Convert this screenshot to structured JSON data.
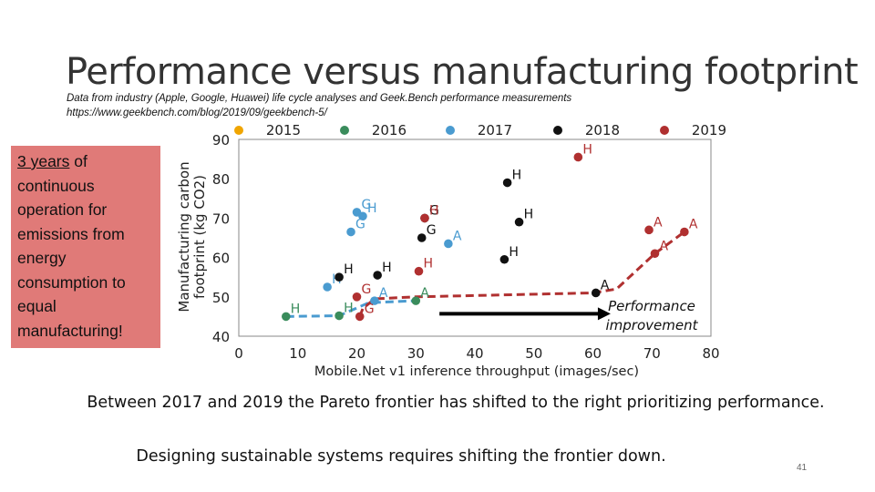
{
  "slide": {
    "title": "Performance versus manufacturing footprint",
    "subtitle_line1": "Data from industry (Apple, Google, Huawei) life cycle analyses and Geek.Bench performance measurements",
    "subtitle_line2": "https://www.geekbench.com/blog/2019/09/geekbench-5/",
    "callout_underlined": "3 years",
    "callout_rest": "of continuous operation for emissions from energy consumption to equal manufacturing!",
    "conclusion_line1": "Between 2017 and 2019 the Pareto frontier has shifted to the right prioritizing performance.",
    "conclusion_line2": "Designing sustainable systems requires shifting the frontier down.",
    "page_number": "41"
  },
  "chart_data": {
    "type": "scatter",
    "xlabel": "Mobile.Net v1 inference throughput (images/sec)",
    "ylabel": "Manufacturing carbon footprint (kg CO2)",
    "xlim": [
      0,
      80
    ],
    "ylim": [
      40,
      90
    ],
    "xticks": [
      "0",
      "10",
      "20",
      "30",
      "40",
      "50",
      "60",
      "70",
      "80"
    ],
    "yticks": [
      "40",
      "50",
      "60",
      "70",
      "80",
      "90"
    ],
    "legend_position": "top",
    "series": [
      {
        "name": "2015",
        "color": "#f0a500",
        "points": []
      },
      {
        "name": "2016",
        "color": "#3a8c5c",
        "points": [
          {
            "x": 8,
            "y": 45,
            "label": "H"
          },
          {
            "x": 17,
            "y": 45.2,
            "label": "H"
          },
          {
            "x": 30,
            "y": 49,
            "label": "A"
          }
        ]
      },
      {
        "name": "2017",
        "color": "#4a9bd0",
        "points": [
          {
            "x": 15,
            "y": 52.5,
            "label": "H"
          },
          {
            "x": 19,
            "y": 66.5,
            "label": "G"
          },
          {
            "x": 20,
            "y": 71.5,
            "label": "G"
          },
          {
            "x": 21,
            "y": 70.5,
            "label": "H"
          },
          {
            "x": 23,
            "y": 49,
            "label": "A"
          },
          {
            "x": 35.5,
            "y": 63.5,
            "label": "A"
          }
        ]
      },
      {
        "name": "2018",
        "color": "#111111",
        "points": [
          {
            "x": 17,
            "y": 55,
            "label": "H"
          },
          {
            "x": 23.5,
            "y": 55.5,
            "label": "H"
          },
          {
            "x": 31,
            "y": 65,
            "label": "G"
          },
          {
            "x": 31.5,
            "y": 70,
            "label": "G"
          },
          {
            "x": 45,
            "y": 59.5,
            "label": "H"
          },
          {
            "x": 45.5,
            "y": 79,
            "label": "H"
          },
          {
            "x": 47.5,
            "y": 69,
            "label": "H"
          },
          {
            "x": 60.5,
            "y": 51,
            "label": "A"
          }
        ]
      },
      {
        "name": "2019",
        "color": "#b03030",
        "points": [
          {
            "x": 20,
            "y": 50,
            "label": "G"
          },
          {
            "x": 20.5,
            "y": 45,
            "label": "G"
          },
          {
            "x": 30.5,
            "y": 56.5,
            "label": "H"
          },
          {
            "x": 31.5,
            "y": 70,
            "label": "H"
          },
          {
            "x": 57.5,
            "y": 85.5,
            "label": "H"
          },
          {
            "x": 69.5,
            "y": 67,
            "label": "A"
          },
          {
            "x": 70.5,
            "y": 61,
            "label": "A"
          },
          {
            "x": 75.5,
            "y": 66.5,
            "label": "A"
          }
        ]
      }
    ],
    "frontiers": [
      {
        "name": "2017",
        "color": "#4a9bd0",
        "points": [
          [
            8,
            45
          ],
          [
            17,
            45.2
          ],
          [
            22,
            48.5
          ],
          [
            30,
            49
          ]
        ]
      },
      {
        "name": "2019",
        "color": "#b03030",
        "points": [
          [
            20.5,
            45
          ],
          [
            21,
            47
          ],
          [
            23,
            49.5
          ],
          [
            30,
            50
          ],
          [
            60,
            51
          ],
          [
            64,
            52
          ],
          [
            70.5,
            61
          ],
          [
            75.5,
            66.5
          ]
        ]
      }
    ],
    "annotation": {
      "text_line1": "Performance",
      "text_line2": "improvement",
      "arrow_from": [
        34,
        45.7
      ],
      "arrow_to": [
        63,
        45.7
      ]
    }
  }
}
